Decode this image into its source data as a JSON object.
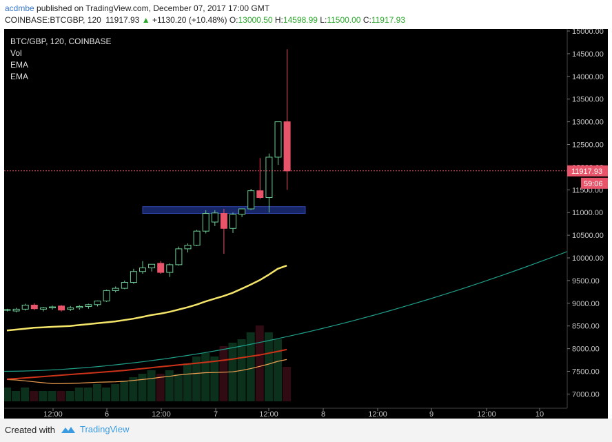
{
  "header": {
    "user": "acdmbe",
    "published_text": "published on TradingView.com, December 07, 2017 17:00 GMT",
    "symbol": "COINBASE:BTCGBP, 120",
    "last": "11917.93",
    "up_arrow": "▲",
    "change": "+1130.20 (+10.48%)",
    "o_label": "O:",
    "o_value": "13000.50",
    "h_label": "H:",
    "h_value": "14598.99",
    "l_label": "L:",
    "l_value": "11500.00",
    "c_label": "C:",
    "c_value": "11917.93"
  },
  "footer": {
    "created_with": "Created with",
    "brand": "TradingView",
    "brand_icon": "tradingview-logo-icon"
  },
  "colors": {
    "background": "#000000",
    "up_candle": "#6fcf97",
    "down_candle": "#e8556a",
    "ema_fast": "#f5e66a",
    "ema_slow": "#cc3318",
    "ema_orange": "#f0a050",
    "long_curve": "#1f9f8a",
    "zone": "#1a2d7a",
    "zone_border": "#3a55cc",
    "last_price_badge": "#e8556a"
  },
  "chart_data": {
    "type": "candlestick",
    "title": "BTC/GBP, 120, COINBASE",
    "legend": [
      "Vol",
      "EMA",
      "EMA"
    ],
    "y_ticks": [
      "15000.00",
      "14500.00",
      "14000.00",
      "13500.00",
      "13000.00",
      "12500.00",
      "12000.00",
      "11500.00",
      "11000.00",
      "10500.00",
      "10000.00",
      "9500.00",
      "9000.00",
      "8500.00",
      "8000.00",
      "7500.00",
      "7000.00"
    ],
    "x_ticks": [
      "12:00",
      "6",
      "12:00",
      "7",
      "12:00",
      "8",
      "12:00",
      "9",
      "12:00",
      "10"
    ],
    "ylim": [
      6900,
      15000
    ],
    "last_price_label": "11917.93",
    "countdown_label": "59:06",
    "candles": [
      {
        "o": 8850,
        "h": 8880,
        "l": 8820,
        "c": 8860
      },
      {
        "o": 8830,
        "h": 8900,
        "l": 8800,
        "c": 8870
      },
      {
        "o": 8870,
        "h": 8990,
        "l": 8840,
        "c": 8960
      },
      {
        "o": 8960,
        "h": 9000,
        "l": 8850,
        "c": 8880
      },
      {
        "o": 8870,
        "h": 8920,
        "l": 8820,
        "c": 8900
      },
      {
        "o": 8900,
        "h": 8950,
        "l": 8860,
        "c": 8920
      },
      {
        "o": 8940,
        "h": 8960,
        "l": 8820,
        "c": 8850
      },
      {
        "o": 8870,
        "h": 8940,
        "l": 8830,
        "c": 8900
      },
      {
        "o": 8900,
        "h": 8960,
        "l": 8860,
        "c": 8930
      },
      {
        "o": 8930,
        "h": 8990,
        "l": 8880,
        "c": 8970
      },
      {
        "o": 8970,
        "h": 9060,
        "l": 8930,
        "c": 9050
      },
      {
        "o": 9050,
        "h": 9300,
        "l": 9030,
        "c": 9280
      },
      {
        "o": 9280,
        "h": 9370,
        "l": 9240,
        "c": 9330
      },
      {
        "o": 9330,
        "h": 9500,
        "l": 9310,
        "c": 9460
      },
      {
        "o": 9460,
        "h": 9760,
        "l": 9430,
        "c": 9700
      },
      {
        "o": 9700,
        "h": 9930,
        "l": 9650,
        "c": 9780
      },
      {
        "o": 9780,
        "h": 9860,
        "l": 9700,
        "c": 9860
      },
      {
        "o": 9880,
        "h": 9930,
        "l": 9650,
        "c": 9680
      },
      {
        "o": 9680,
        "h": 9880,
        "l": 9580,
        "c": 9850
      },
      {
        "o": 9850,
        "h": 10250,
        "l": 9830,
        "c": 10200
      },
      {
        "o": 10200,
        "h": 10320,
        "l": 10120,
        "c": 10280
      },
      {
        "o": 10280,
        "h": 10620,
        "l": 10260,
        "c": 10590
      },
      {
        "o": 10590,
        "h": 11050,
        "l": 10540,
        "c": 10980
      },
      {
        "o": 10790,
        "h": 11050,
        "l": 10700,
        "c": 10990
      },
      {
        "o": 10980,
        "h": 11080,
        "l": 10090,
        "c": 10650
      },
      {
        "o": 10650,
        "h": 11000,
        "l": 10550,
        "c": 10960
      },
      {
        "o": 10960,
        "h": 11080,
        "l": 10900,
        "c": 11080
      },
      {
        "o": 11080,
        "h": 11520,
        "l": 11060,
        "c": 11480
      },
      {
        "o": 11480,
        "h": 12200,
        "l": 11300,
        "c": 11330
      },
      {
        "o": 11330,
        "h": 12300,
        "l": 11000,
        "c": 12220
      },
      {
        "o": 12220,
        "h": 13000,
        "l": 12050,
        "c": 13000
      },
      {
        "o": 13000,
        "h": 14598.99,
        "l": 11500,
        "c": 11917.93
      }
    ],
    "volume": [
      4,
      3,
      4,
      3,
      3,
      3,
      3,
      3,
      4,
      4,
      5,
      4,
      5,
      6,
      7,
      8,
      9,
      8,
      9,
      8,
      11,
      13,
      14,
      13,
      16,
      17,
      18,
      20,
      22,
      20,
      18,
      10
    ],
    "ema_fast": [
      8400,
      8420,
      8440,
      8460,
      8470,
      8480,
      8490,
      8500,
      8520,
      8540,
      8560,
      8580,
      8600,
      8630,
      8660,
      8700,
      8740,
      8770,
      8810,
      8860,
      8910,
      8970,
      9040,
      9100,
      9160,
      9230,
      9320,
      9410,
      9510,
      9630,
      9760,
      9830
    ],
    "ema_slow": [
      7330,
      7340,
      7355,
      7370,
      7385,
      7400,
      7415,
      7430,
      7445,
      7460,
      7475,
      7490,
      7505,
      7520,
      7540,
      7560,
      7580,
      7600,
      7620,
      7640,
      7660,
      7680,
      7700,
      7720,
      7745,
      7770,
      7800,
      7830,
      7860,
      7900,
      7940,
      7980
    ],
    "ema_orange": [
      7320,
      7310,
      7290,
      7270,
      7250,
      7230,
      7230,
      7235,
      7240,
      7250,
      7260,
      7265,
      7270,
      7280,
      7300,
      7320,
      7340,
      7370,
      7390,
      7420,
      7440,
      7455,
      7470,
      7475,
      7480,
      7490,
      7520,
      7560,
      7610,
      7660,
      7720,
      7760
    ],
    "long_curve_start": 7500,
    "long_curve_end": 10140,
    "zone": {
      "y_low": 10980,
      "y_high": 11130
    }
  }
}
